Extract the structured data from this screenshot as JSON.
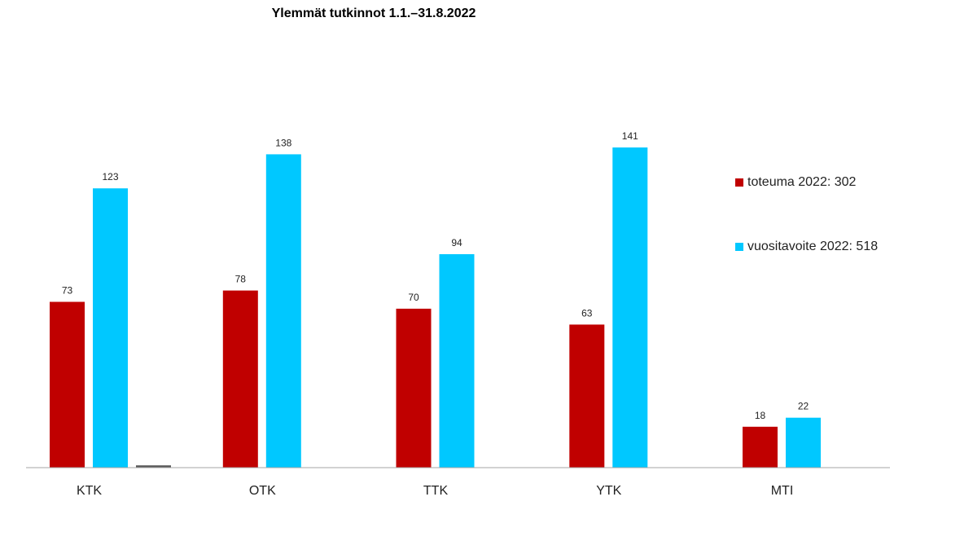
{
  "chart_data": {
    "type": "bar",
    "title": "Ylemmät tutkinnot 1.1.–31.8.2022",
    "xlabel": "",
    "ylabel": "",
    "categories": [
      "KTK",
      "OTK",
      "TTK",
      "YTK",
      "MTI"
    ],
    "series": [
      {
        "name": "toteuma 2022: 302",
        "color": "#c00000",
        "values": [
          73,
          78,
          70,
          63,
          18
        ]
      },
      {
        "name": "vuositavoite 2022: 518",
        "color": "#00c8ff",
        "values": [
          123,
          138,
          94,
          141,
          22
        ]
      },
      {
        "color": "#595959",
        "values": [
          1,
          null,
          null,
          null,
          null
        ]
      }
    ],
    "ylim": [
      0,
      141
    ],
    "grid": false,
    "legend_position": "right"
  }
}
